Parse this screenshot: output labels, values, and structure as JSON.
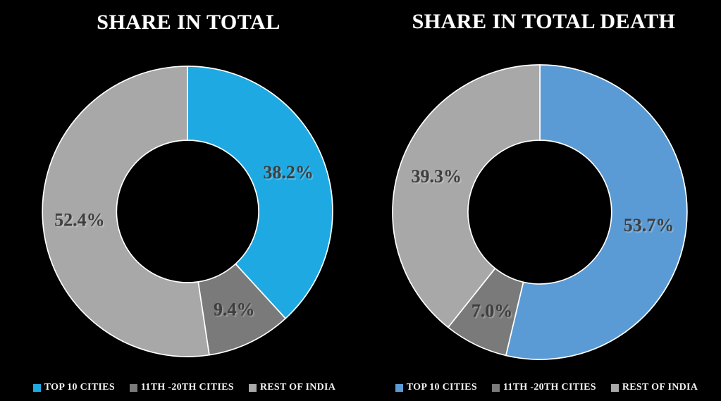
{
  "page": {
    "background": "#000000"
  },
  "styles": {
    "title_color": "#FFFFFF",
    "slice_border_color": "#FFFFFF",
    "slice_label_color": "#3E3E3E",
    "slice_label_highlight": "rgba(255,255,255,0.22)",
    "legend_text_color": "#F2F2F2"
  },
  "chart_data": [
    {
      "type": "pie",
      "subtype": "donut",
      "title": "SHARE IN TOTAL",
      "donut_hole_ratio": 0.49,
      "start_angle_deg": 0,
      "direction": "clockwise",
      "legend_position": "bottom",
      "slices": [
        {
          "label": "TOP 10 CITIES",
          "value": 38.2,
          "display": "38.2%",
          "color": "#1FA9E2"
        },
        {
          "label": "11TH -20TH CITIES",
          "value": 9.4,
          "display": "9.4%",
          "color": "#7A7A7A"
        },
        {
          "label": "REST OF INDIA",
          "value": 52.4,
          "display": "52.4%",
          "color": "#A8A8A8"
        }
      ]
    },
    {
      "type": "pie",
      "subtype": "donut",
      "title": "SHARE IN TOTAL DEATH",
      "donut_hole_ratio": 0.49,
      "start_angle_deg": 0,
      "direction": "clockwise",
      "legend_position": "bottom",
      "slices": [
        {
          "label": "TOP 10 CITIES",
          "value": 53.7,
          "display": "53.7%",
          "color": "#5B9BD5"
        },
        {
          "label": "11TH -20TH CITIES",
          "value": 7.0,
          "display": "7.0%",
          "color": "#7A7A7A"
        },
        {
          "label": "REST OF INDIA",
          "value": 39.3,
          "display": "39.3%",
          "color": "#A8A8A8"
        }
      ]
    }
  ]
}
